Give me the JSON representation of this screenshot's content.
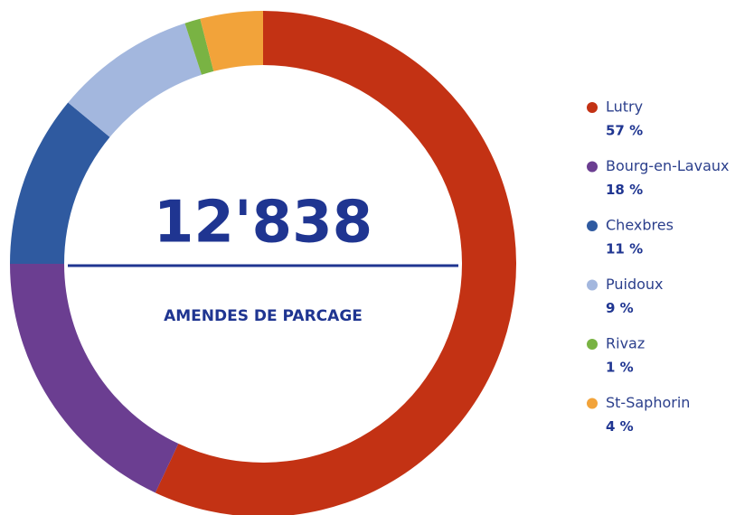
{
  "chart_data": {
    "type": "donut",
    "center_text": "12'838",
    "center_caption": "AMENDES DE PARCAGE",
    "categories": [
      "Lutry",
      "Bourg-en-Lavaux",
      "Chexbres",
      "Puidoux",
      "Rivaz",
      "St-Saphorin"
    ],
    "values": [
      57,
      18,
      11,
      9,
      1,
      4
    ],
    "value_labels": [
      "57 %",
      "18 %",
      "11 %",
      "9 %",
      "1 %",
      "4 %"
    ],
    "colors": [
      "#c33214",
      "#6b3e91",
      "#2f5aa0",
      "#a3b7de",
      "#79b343",
      "#f2a33a"
    ],
    "legend": "right"
  }
}
